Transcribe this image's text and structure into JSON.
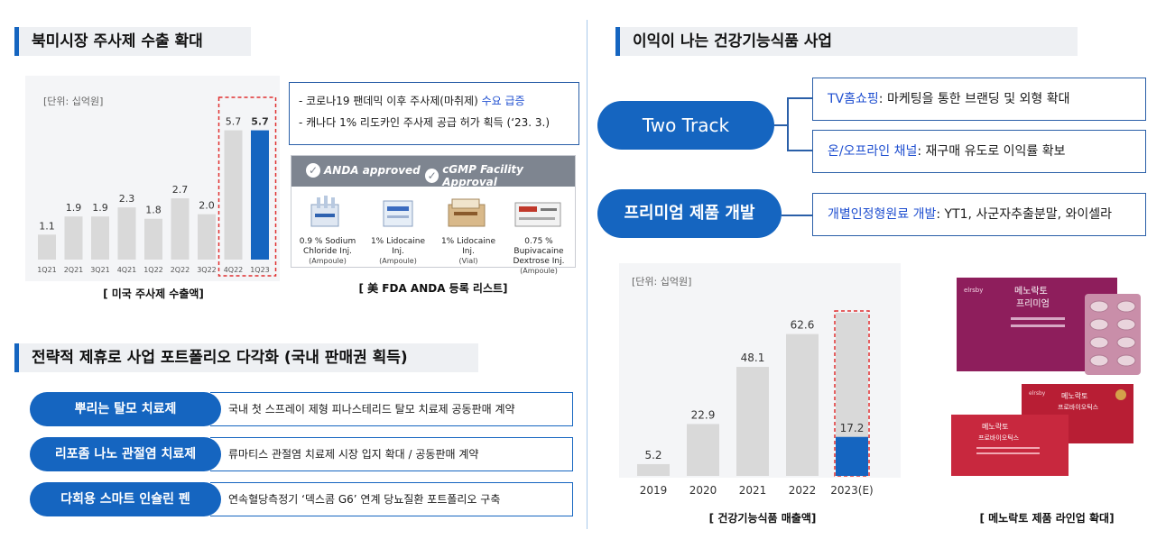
{
  "left": {
    "na_title": "북미시장 주사제 수출 확대",
    "chart1": {
      "unit": "[단위: 십억원]",
      "caption": "[ 미국 주사제 수출액]",
      "highlight_last_two": true
    },
    "info": {
      "line1_prefix": "- 코로나19 팬데믹 이후 주사제(마취제) ",
      "line1_highlight": "수요 급증",
      "line2": "- 캐나다 1% 리도카인 주사제 공급 허가 획득 (‘23. 3.)"
    },
    "anda": {
      "badge1": "ANDA approved",
      "badge2": "cGMP Facility Approval",
      "products": [
        {
          "name": "0.9 % Sodium Chloride Inj.",
          "form": "(Ampoule)"
        },
        {
          "name": "1% Lidocaine Inj.",
          "form": "(Ampoule)"
        },
        {
          "name": "1% Lidocaine Inj.",
          "form": "(Vial)"
        },
        {
          "name": "0.75 % Bupivacaine Dextrose Inj.",
          "form": "(Ampoule)"
        }
      ],
      "caption": "[ 美 FDA ANDA 등록 리스트]"
    },
    "strategy_title": "전략적 제휴로 사업 포트폴리오 다각화 (국내 판매권 획득)",
    "strategy_rows": [
      {
        "label": "뿌리는 탈모 치료제",
        "desc": "국내 첫 스프레이 제형 피나스테리드 탈모 치료제 공동판매 계약"
      },
      {
        "label": "리포좀 나노 관절염 치료제",
        "desc": "류마티스 관절염 치료제 시장 입지 확대 / 공동판매 계약"
      },
      {
        "label": "다회용 스마트 인슐린 펜",
        "desc": "연속혈당측정기 ‘덱스콤 G6’ 연계 당뇨질환 포트폴리오 구축"
      }
    ]
  },
  "right": {
    "title": "이익이 나는 건강기능식품 사업",
    "two_track": "Two Track",
    "premium": "프리미엄 제품 개발",
    "box1_hl": "TV홈쇼핑",
    "box1_rest": ": 마케팅을 통한 브랜딩 및 외형 확대",
    "box2_hl": "온/오프라인 채널",
    "box2_rest": ": 재구매 유도로 이익률 확보",
    "box3_hl": "개별인정형원료 개발",
    "box3_rest": ": YT1, 사군자추출분말, 와이셀라",
    "chart2": {
      "unit": "[단위: 십억원]",
      "caption": "[ 건강기능식품 매출액]"
    },
    "product_caption": "[ 메노락토 제품 라인업 확대]",
    "product_box1": {
      "name": "메노락토",
      "sub": "프리미엄",
      "brand": "elrsby"
    },
    "product_box2": {
      "name": "메노락토",
      "sub": "프로바이오틱스",
      "brand": "elrsby"
    }
  },
  "chart_data": [
    {
      "type": "bar",
      "categories": [
        "1Q21",
        "2Q21",
        "3Q21",
        "4Q21",
        "1Q22",
        "2Q22",
        "3Q22",
        "4Q22",
        "1Q23"
      ],
      "values": [
        1.1,
        1.9,
        1.9,
        2.3,
        1.8,
        2.7,
        2.0,
        5.7,
        5.7
      ],
      "value_labels": [
        "1.1",
        "1.9",
        "1.9",
        "2.3",
        "1.8",
        "2.7",
        "2.0",
        "5.7",
        "5.7"
      ],
      "ylim": [
        0,
        6.2
      ],
      "colors": {
        "normal": "#d9d9d9",
        "highlight": "#1565c0",
        "box": "#e03030"
      }
    },
    {
      "type": "bar",
      "categories": [
        "2019",
        "2020",
        "2021",
        "2022",
        "2023(E)"
      ],
      "values": [
        5.2,
        22.9,
        48.1,
        62.6,
        17.2
      ],
      "value_labels": [
        "5.2",
        "22.9",
        "48.1",
        "62.6",
        "17.2"
      ],
      "ylim": [
        0,
        70
      ],
      "colors": {
        "normal": "#d9d9d9",
        "highlight": "#1565c0",
        "box": "#e03030"
      }
    }
  ]
}
